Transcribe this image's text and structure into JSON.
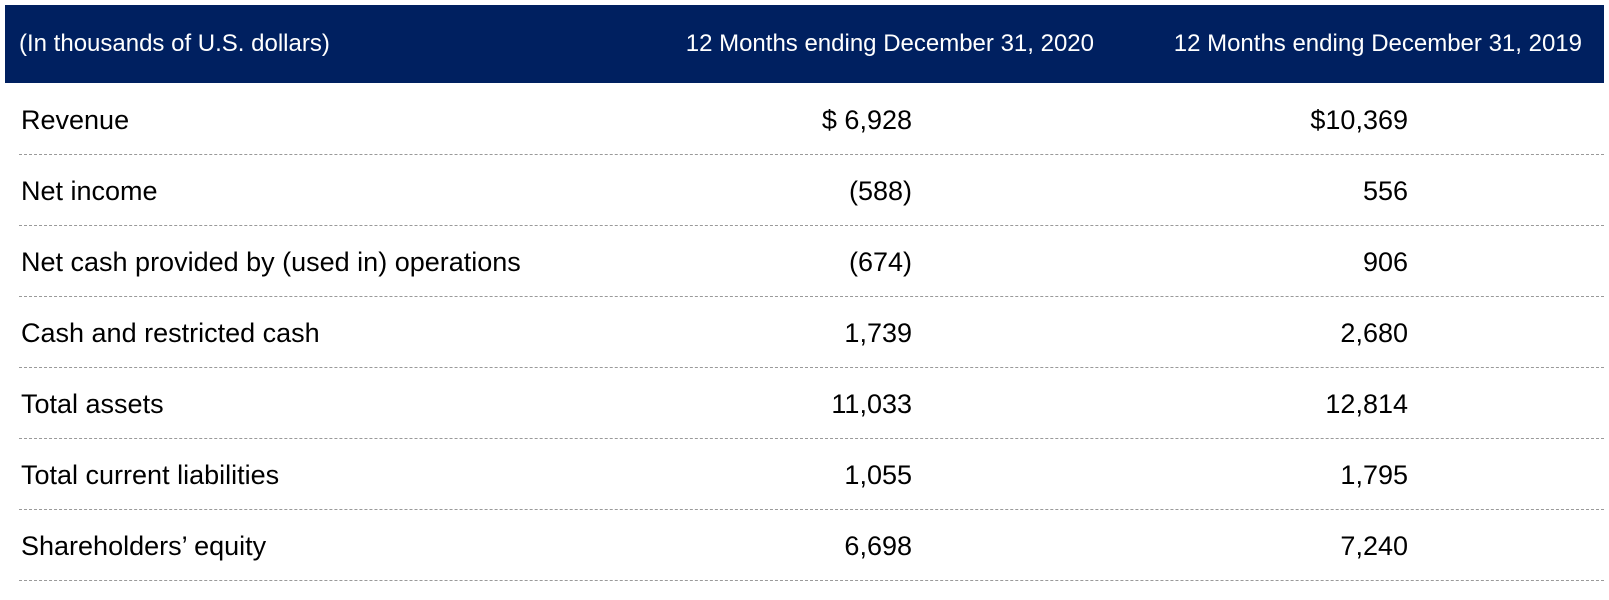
{
  "table": {
    "header": [
      "(In thousands of U.S. dollars)",
      "12 Months ending December 31, 2020",
      "12 Months ending December 31, 2019"
    ],
    "rows": [
      [
        "Revenue",
        "$ 6,928",
        "$10,369"
      ],
      [
        "Net income",
        "(588)",
        "556"
      ],
      [
        "Net cash provided by (used in) operations",
        "(674)",
        "906"
      ],
      [
        "Cash and restricted cash",
        "1,739",
        "2,680"
      ],
      [
        "Total assets",
        "11,033",
        "12,814"
      ],
      [
        "Total current liabilities",
        "1,055",
        "1,795"
      ],
      [
        "Shareholders’ equity",
        "6,698",
        "7,240"
      ]
    ]
  }
}
